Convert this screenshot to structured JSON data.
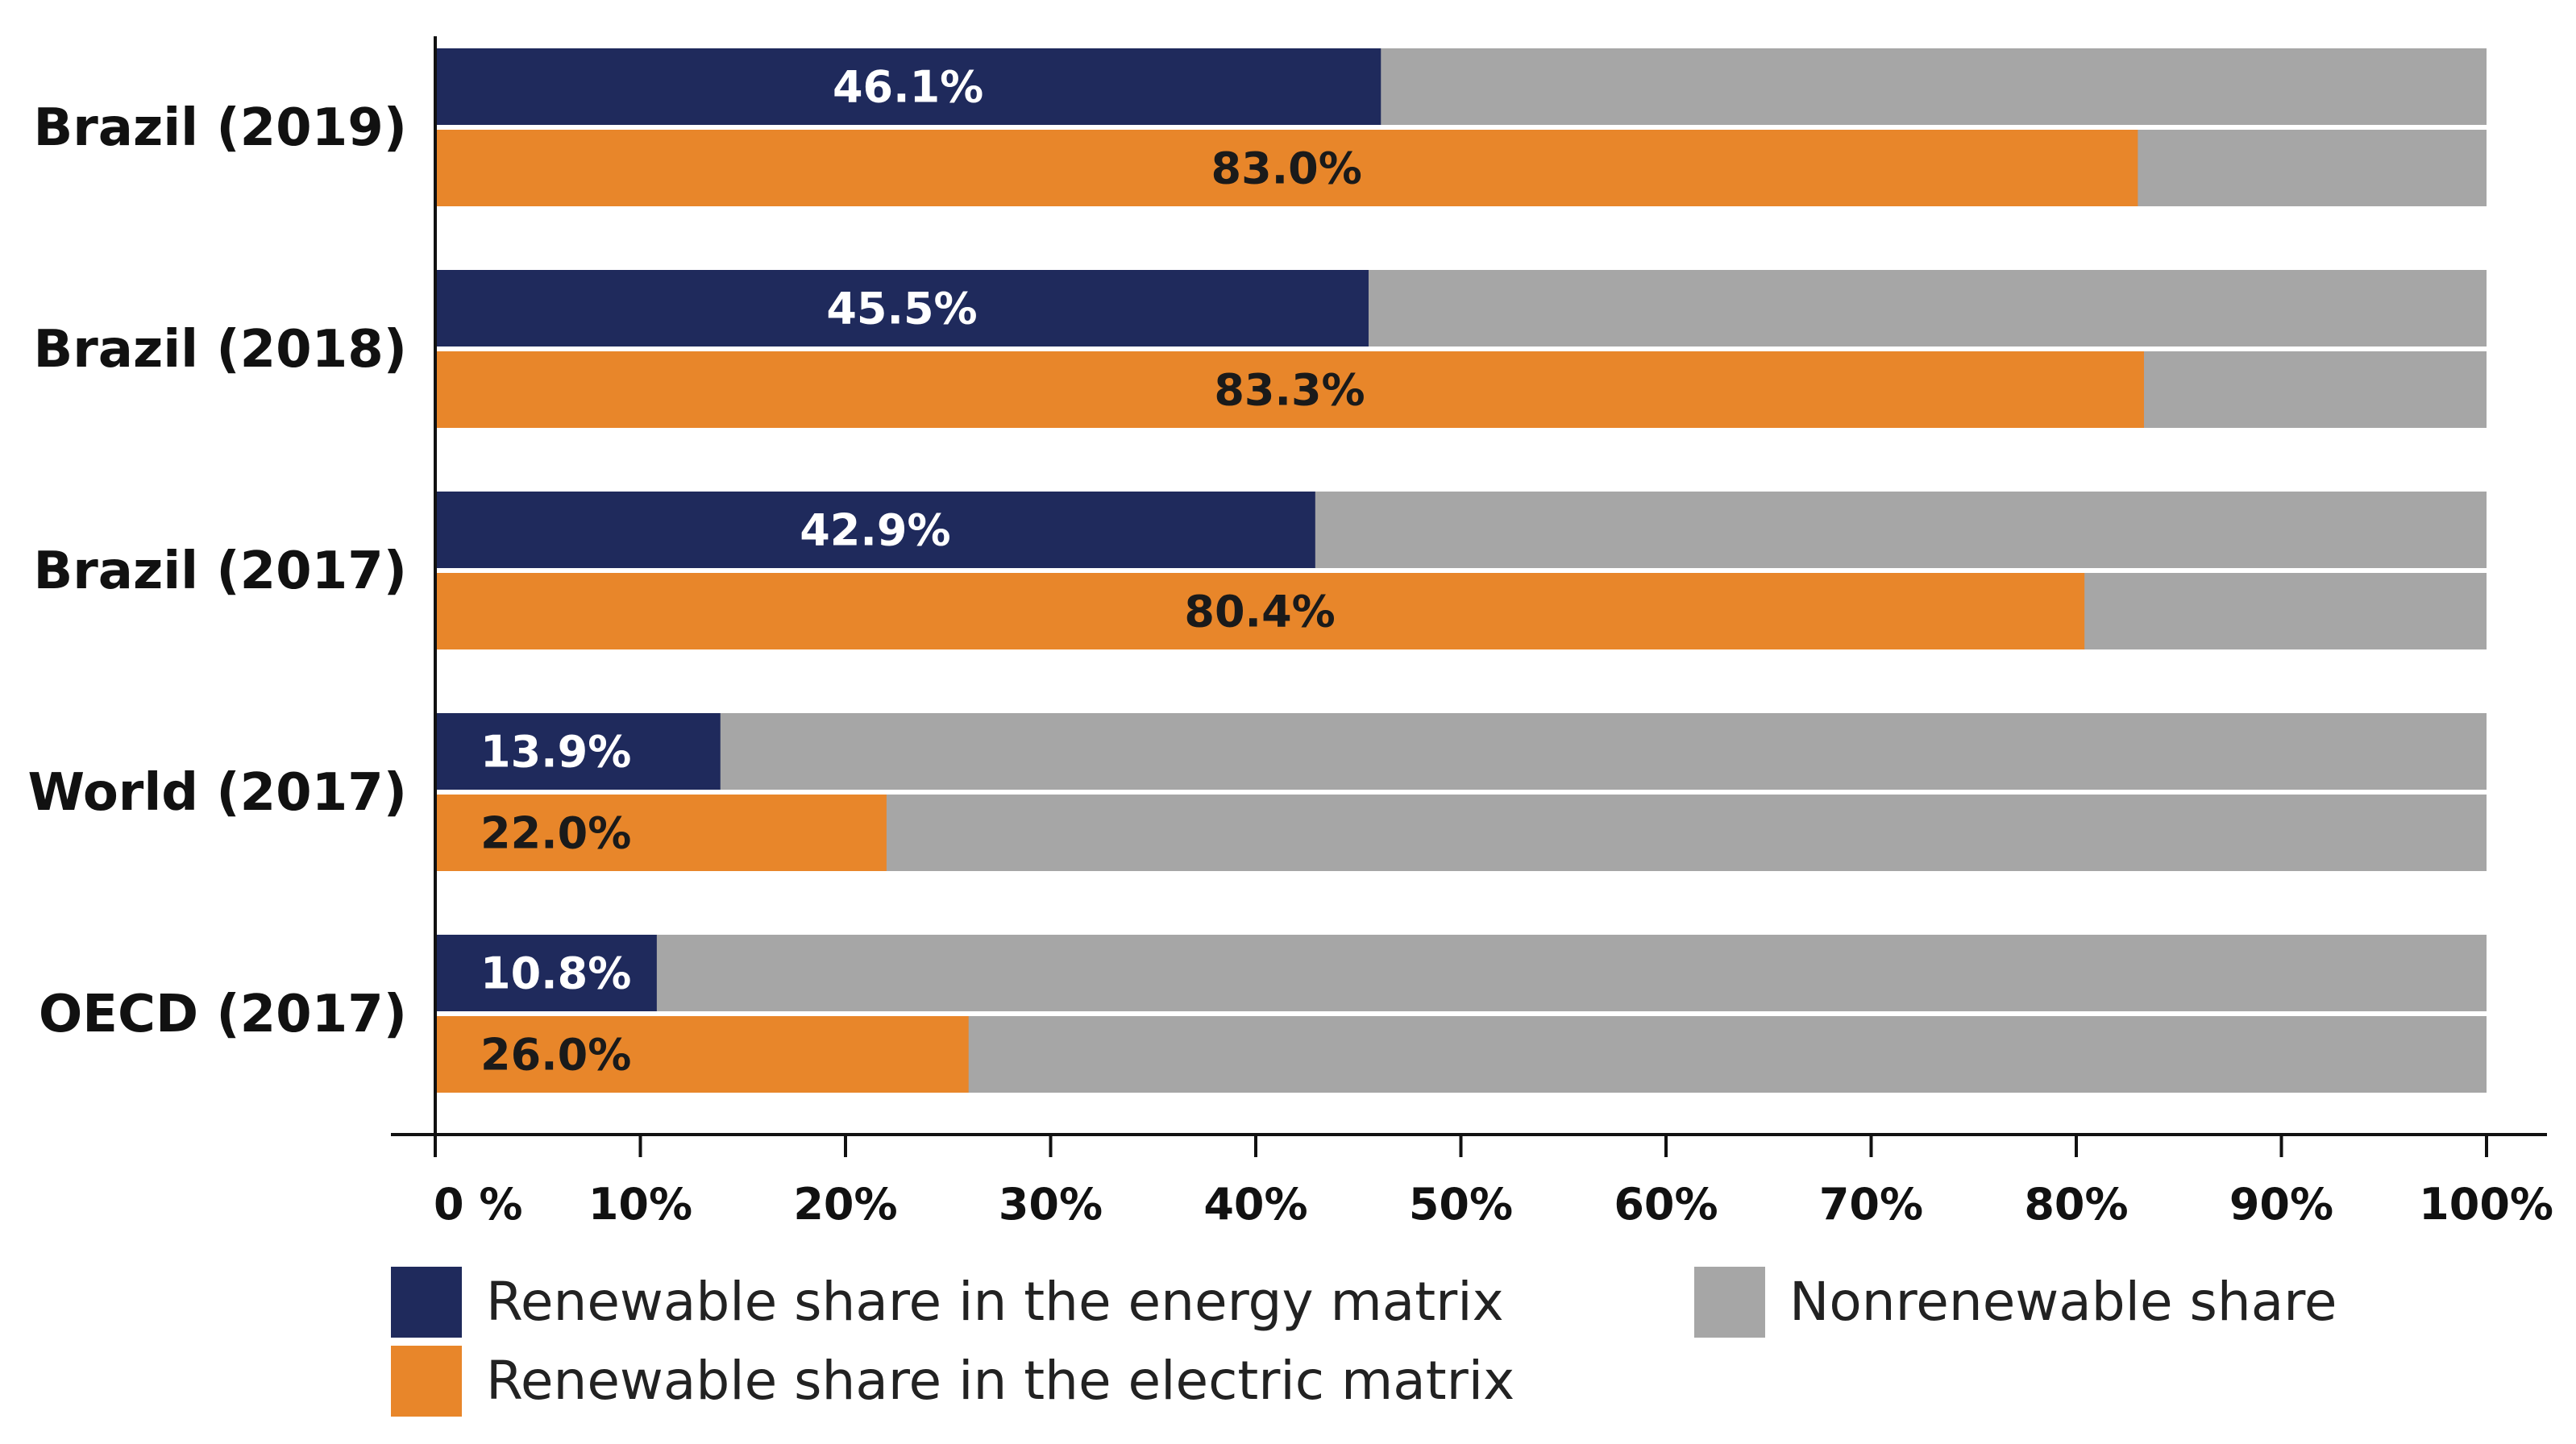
{
  "colors": {
    "energy": "#1f2a5c",
    "electric": "#e8862a",
    "nonrenewable": "#a6a6a6",
    "energy_label": "#ffffff",
    "electric_label": "#1a1a1a"
  },
  "chart_data": {
    "type": "bar",
    "orientation": "horizontal",
    "stacked_to": 100,
    "categories": [
      "Brazil (2019)",
      "Brazil (2018)",
      "Brazil (2017)",
      "World (2017)",
      "OECD (2017)"
    ],
    "series": [
      {
        "name": "Renewable share in the energy matrix",
        "key": "energy",
        "values": [
          46.1,
          45.5,
          42.9,
          13.9,
          10.8
        ],
        "labels": [
          "46.1%",
          "45.5%",
          "42.9%",
          "13.9%",
          "10.8%"
        ]
      },
      {
        "name": "Renewable share in the electric matrix",
        "key": "electric",
        "values": [
          83.0,
          83.3,
          80.4,
          22.0,
          26.0
        ],
        "labels": [
          "83.0%",
          "83.3%",
          "80.4%",
          "22.0%",
          "26.0%"
        ]
      }
    ],
    "remainder_series": "Nonrenewable share",
    "xlim": [
      0,
      100
    ],
    "xticks": [
      0,
      10,
      20,
      30,
      40,
      50,
      60,
      70,
      80,
      90,
      100
    ],
    "xtick_labels": [
      "0 %",
      "10%",
      "20%",
      "30%",
      "40%",
      "50%",
      "60%",
      "70%",
      "80%",
      "90%",
      "100%"
    ],
    "legend": {
      "placement": "bottom",
      "items": [
        {
          "label": "Renewable share in the energy matrix",
          "key": "energy"
        },
        {
          "label": "Nonrenewable share",
          "key": "nonrenewable"
        },
        {
          "label": "Renewable share in the electric matrix",
          "key": "electric"
        }
      ]
    },
    "title": "",
    "xlabel": "",
    "ylabel": ""
  }
}
